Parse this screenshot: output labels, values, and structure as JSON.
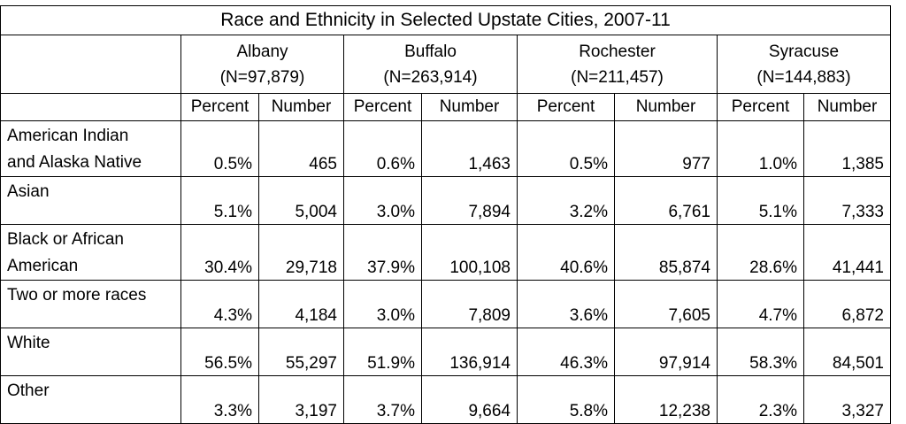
{
  "table": {
    "title": "Race and Ethnicity in Selected Upstate Cities, 2007-11",
    "cities": [
      {
        "name": "Albany",
        "n": "(N=97,879)"
      },
      {
        "name": "Buffalo",
        "n": "(N=263,914)"
      },
      {
        "name": "Rochester",
        "n": "(N=211,457)"
      },
      {
        "name": "Syracuse",
        "n": "(N=144,883)"
      }
    ],
    "subheaders": [
      "Percent",
      "Number",
      "Percent",
      "Number",
      "Percent",
      "Number",
      "Percent",
      "Number"
    ],
    "rows": [
      {
        "label1": "American Indian",
        "label2": "and Alaska Native",
        "cells": [
          "0.5%",
          "465",
          "0.6%",
          "1,463",
          "0.5%",
          "977",
          "1.0%",
          "1,385"
        ]
      },
      {
        "label1": "Asian",
        "label2": "",
        "cells": [
          "5.1%",
          "5,004",
          "3.0%",
          "7,894",
          "3.2%",
          "6,761",
          "5.1%",
          "7,333"
        ]
      },
      {
        "label1": "Black or African",
        "label2": "American",
        "cells": [
          "30.4%",
          "29,718",
          "37.9%",
          "100,108",
          "40.6%",
          "85,874",
          "28.6%",
          "41,441"
        ]
      },
      {
        "label1": "Two or more races",
        "label2": "",
        "cells": [
          "4.3%",
          "4,184",
          "3.0%",
          "7,809",
          "3.6%",
          "7,605",
          "4.7%",
          "6,872"
        ]
      },
      {
        "label1": "White",
        "label2": "",
        "cells": [
          "56.5%",
          "55,297",
          "51.9%",
          "136,914",
          "46.3%",
          "97,914",
          "58.3%",
          "84,501"
        ]
      },
      {
        "label1": "Other",
        "label2": "",
        "cells": [
          "3.3%",
          "3,197",
          "3.7%",
          "9,664",
          "5.8%",
          "12,238",
          "2.3%",
          "3,327"
        ]
      }
    ]
  }
}
